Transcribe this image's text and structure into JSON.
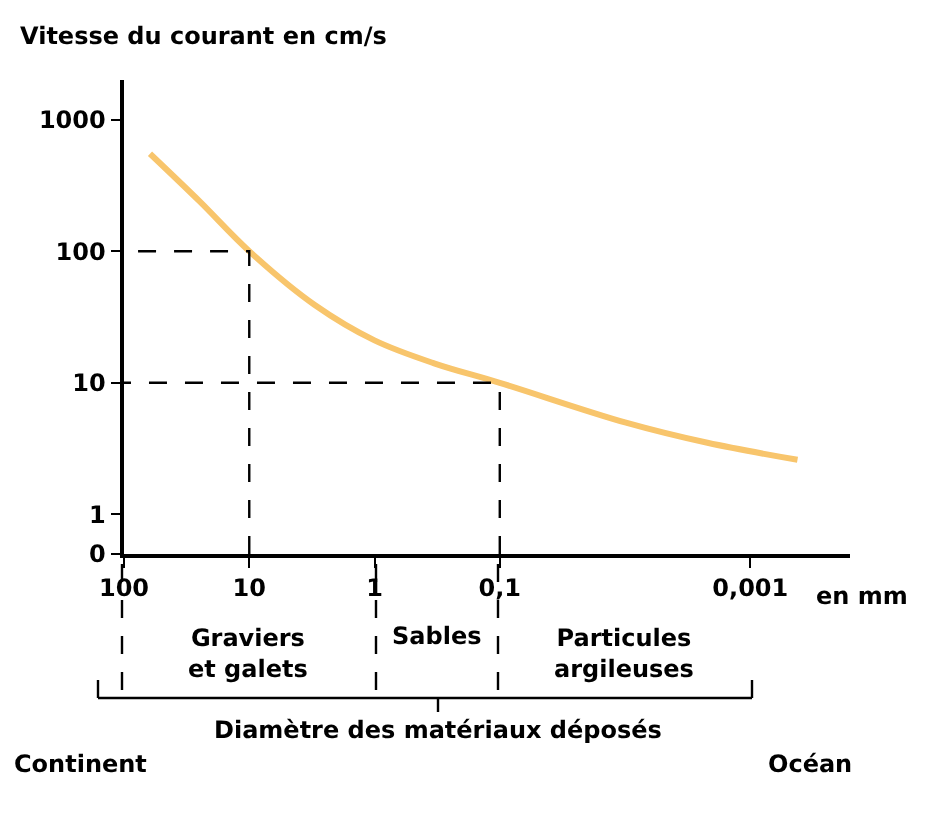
{
  "chart_data": {
    "type": "line",
    "ylabel": "Vitesse du courant en cm/s",
    "xlabel": "en mm",
    "log": "xy",
    "xlim": [
      100,
      0.00016
    ],
    "ylim": [
      0.5,
      2000
    ],
    "xticks": [
      100,
      10,
      1,
      {
        "value": 0.1,
        "label": "0,1"
      },
      {
        "value": 0.001,
        "label": "0,001"
      }
    ],
    "yticks": [
      {
        "value": 0.5,
        "label": "0"
      },
      1,
      10,
      100,
      1000
    ],
    "marker": "none",
    "series": [
      {
        "color": "#f8c56c",
        "x": [
          62,
          25,
          10,
          3.0,
          1,
          0.33,
          0.1,
          0.01,
          0.0022,
          0.00042
        ],
        "values": [
          550,
          240,
          100,
          39,
          21,
          14,
          10,
          5.0,
          3.5,
          2.6
        ],
        "line_style": "solid"
      },
      {
        "color": "#000000",
        "x": [
          10,
          10,
          100
        ],
        "values": [
          0.5,
          100,
          100
        ],
        "line_style": "dashed"
      },
      {
        "color": "#000000",
        "x": [
          0.1,
          0.1,
          100
        ],
        "values": [
          0.5,
          10,
          10
        ],
        "line_style": "dashed"
      }
    ],
    "annotations": [
      "Graviers\net galets",
      "Sables",
      "Particules\nargileuses",
      "Diamètre des matériaux déposés",
      "Continent",
      "Océan"
    ]
  }
}
